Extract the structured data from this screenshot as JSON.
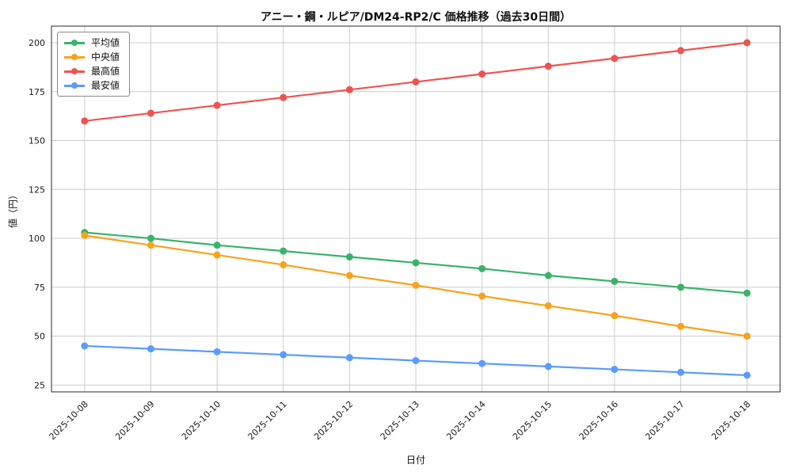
{
  "chart_data": {
    "type": "line",
    "title": "アニー・鋼・ルピア/DM24-RP2/C 価格推移（過去30日間）",
    "xlabel": "日付",
    "ylabel": "値（円）",
    "x": [
      "2025-10-08",
      "2025-10-09",
      "2025-10-10",
      "2025-10-11",
      "2025-10-12",
      "2025-10-13",
      "2025-10-14",
      "2025-10-15",
      "2025-10-16",
      "2025-10-17",
      "2025-10-18"
    ],
    "series": [
      {
        "name": "平均値",
        "color": "#38b368",
        "values": [
          103,
          100,
          96.5,
          93.5,
          90.5,
          87.5,
          84.5,
          81,
          78,
          75,
          72
        ]
      },
      {
        "name": "中央値",
        "color": "#f7a31b",
        "values": [
          101.5,
          96.5,
          91.5,
          86.5,
          81,
          76,
          70.5,
          65.5,
          60.5,
          55,
          50
        ]
      },
      {
        "name": "最高値",
        "color": "#ef5350",
        "values": [
          160,
          164,
          168,
          172,
          176,
          180,
          184,
          188,
          192,
          196,
          200
        ]
      },
      {
        "name": "最安値",
        "color": "#5b9bff",
        "values": [
          45,
          43.5,
          42,
          40.5,
          39,
          37.5,
          36,
          34.5,
          33,
          31.5,
          30
        ]
      }
    ],
    "yticks": [
      25,
      50,
      75,
      100,
      125,
      150,
      175,
      200
    ],
    "ylim": [
      21.5,
      208.5
    ],
    "xlim": [
      -0.5,
      10.5
    ],
    "grid": true,
    "grid_color": "#cccccc",
    "legend_position": "upper-left",
    "background": "#ffffff"
  }
}
